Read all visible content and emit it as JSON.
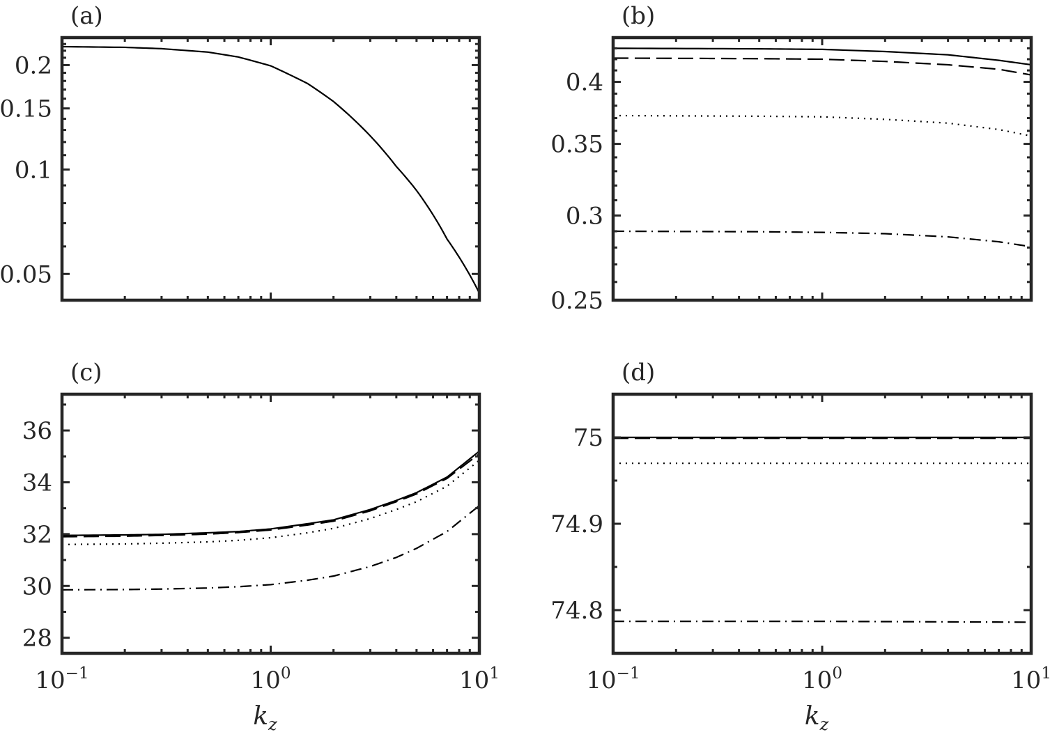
{
  "chart_data": [
    {
      "panel": "(a)",
      "type": "line",
      "xscale": "log",
      "yscale": "log",
      "xlim": [
        0.1,
        10
      ],
      "ylim": [
        0.042,
        0.24
      ],
      "xticks": [
        {
          "value": 0.1,
          "label": "10",
          "exp": "−1"
        },
        {
          "value": 1,
          "label": "10",
          "exp": "0"
        },
        {
          "value": 10,
          "label": "10",
          "exp": "1"
        }
      ],
      "yticks": [
        {
          "value": 0.05,
          "label": "0.05"
        },
        {
          "value": 0.1,
          "label": "0.1"
        },
        {
          "value": 0.15,
          "label": "0.15"
        },
        {
          "value": 0.2,
          "label": "0.2"
        }
      ],
      "show_xticklabels": false,
      "xlabel": "",
      "series": [
        {
          "name": "solid",
          "style": "solid",
          "x": [
            0.1,
            0.2,
            0.3,
            0.5,
            0.7,
            1,
            1.5,
            2,
            3,
            4,
            5,
            7,
            10
          ],
          "y": [
            0.226,
            0.225,
            0.223,
            0.218,
            0.211,
            0.199,
            0.177,
            0.157,
            0.125,
            0.102,
            0.087,
            0.063,
            0.044
          ]
        }
      ]
    },
    {
      "panel": "(b)",
      "type": "line",
      "xscale": "log",
      "yscale": "log",
      "xlim": [
        0.1,
        10
      ],
      "ylim": [
        0.25,
        0.44
      ],
      "xticks": [
        {
          "value": 0.1,
          "label": "10",
          "exp": "−1"
        },
        {
          "value": 1,
          "label": "10",
          "exp": "0"
        },
        {
          "value": 10,
          "label": "10",
          "exp": "1"
        }
      ],
      "yticks": [
        {
          "value": 0.25,
          "label": "0.25"
        },
        {
          "value": 0.3,
          "label": "0.3"
        },
        {
          "value": 0.35,
          "label": "0.35"
        },
        {
          "value": 0.4,
          "label": "0.4"
        }
      ],
      "show_xticklabels": false,
      "xlabel": "",
      "series": [
        {
          "name": "solid",
          "style": "solid",
          "x": [
            0.1,
            0.5,
            1,
            2,
            4,
            7,
            10
          ],
          "y": [
            0.43,
            0.4295,
            0.429,
            0.427,
            0.424,
            0.419,
            0.415
          ]
        },
        {
          "name": "dashed",
          "style": "dashed",
          "x": [
            0.1,
            0.5,
            1,
            2,
            4,
            7,
            10
          ],
          "y": [
            0.421,
            0.4205,
            0.42,
            0.418,
            0.415,
            0.411,
            0.406
          ]
        },
        {
          "name": "dotted",
          "style": "dotted",
          "x": [
            0.1,
            0.5,
            1,
            2,
            4,
            7,
            10
          ],
          "y": [
            0.372,
            0.3715,
            0.371,
            0.369,
            0.366,
            0.361,
            0.356
          ]
        },
        {
          "name": "dash-dot",
          "style": "dashdot",
          "x": [
            0.1,
            0.5,
            1,
            2,
            4,
            7,
            10
          ],
          "y": [
            0.29,
            0.2897,
            0.2893,
            0.2885,
            0.2865,
            0.2835,
            0.2805
          ]
        }
      ]
    },
    {
      "panel": "(c)",
      "type": "line",
      "xscale": "log",
      "yscale": "linear",
      "xlim": [
        0.1,
        10
      ],
      "ylim": [
        27.4,
        37.4
      ],
      "xticks": [
        {
          "value": 0.1,
          "label": "10",
          "exp": "−1"
        },
        {
          "value": 1,
          "label": "10",
          "exp": "0"
        },
        {
          "value": 10,
          "label": "10",
          "exp": "1"
        }
      ],
      "yticks": [
        {
          "value": 28,
          "label": "28"
        },
        {
          "value": 30,
          "label": "30"
        },
        {
          "value": 32,
          "label": "32"
        },
        {
          "value": 34,
          "label": "34"
        },
        {
          "value": 36,
          "label": "36"
        }
      ],
      "show_xticklabels": true,
      "xlabel": "k",
      "xlabel_sub": "z",
      "series": [
        {
          "name": "solid",
          "style": "solid",
          "x": [
            0.1,
            0.2,
            0.3,
            0.5,
            0.7,
            1,
            1.5,
            2,
            3,
            4,
            5,
            7,
            10
          ],
          "y": [
            31.95,
            31.97,
            31.99,
            32.05,
            32.1,
            32.2,
            32.4,
            32.55,
            32.95,
            33.3,
            33.6,
            34.2,
            35.2
          ]
        },
        {
          "name": "dashed",
          "style": "dashed",
          "x": [
            0.1,
            0.2,
            0.3,
            0.5,
            0.7,
            1,
            1.5,
            2,
            3,
            4,
            5,
            7,
            10
          ],
          "y": [
            31.9,
            31.92,
            31.95,
            32.0,
            32.06,
            32.16,
            32.35,
            32.5,
            32.9,
            33.25,
            33.55,
            34.15,
            35.1
          ]
        },
        {
          "name": "dotted",
          "style": "dotted",
          "x": [
            0.1,
            0.2,
            0.3,
            0.5,
            0.7,
            1,
            1.5,
            2,
            3,
            4,
            5,
            7,
            10
          ],
          "y": [
            31.6,
            31.62,
            31.65,
            31.7,
            31.76,
            31.86,
            32.05,
            32.22,
            32.6,
            32.95,
            33.25,
            33.85,
            34.85
          ]
        },
        {
          "name": "dash-dot",
          "style": "dashdot",
          "x": [
            0.1,
            0.2,
            0.3,
            0.5,
            0.7,
            1,
            1.5,
            2,
            3,
            4,
            5,
            7,
            10
          ],
          "y": [
            29.85,
            29.86,
            29.88,
            29.92,
            29.97,
            30.05,
            30.22,
            30.38,
            30.75,
            31.1,
            31.45,
            32.1,
            33.1
          ]
        }
      ]
    },
    {
      "panel": "(d)",
      "type": "line",
      "xscale": "log",
      "yscale": "linear",
      "xlim": [
        0.1,
        10
      ],
      "ylim": [
        74.75,
        75.05
      ],
      "xticks": [
        {
          "value": 0.1,
          "label": "10",
          "exp": "−1"
        },
        {
          "value": 1,
          "label": "10",
          "exp": "0"
        },
        {
          "value": 10,
          "label": "10",
          "exp": "1"
        }
      ],
      "yticks": [
        {
          "value": 74.8,
          "label": "74.8"
        },
        {
          "value": 74.9,
          "label": "74.9"
        },
        {
          "value": 75.0,
          "label": "75"
        }
      ],
      "show_xticklabels": true,
      "xlabel": "k",
      "xlabel_sub": "z",
      "series": [
        {
          "name": "solid",
          "style": "solid",
          "x": [
            0.1,
            1,
            10
          ],
          "y": [
            75.0,
            75.0,
            75.0
          ]
        },
        {
          "name": "dashed",
          "style": "dashed",
          "x": [
            0.1,
            1,
            10
          ],
          "y": [
            74.999,
            74.999,
            74.999
          ]
        },
        {
          "name": "dotted",
          "style": "dotted",
          "x": [
            0.1,
            1,
            10
          ],
          "y": [
            74.97,
            74.97,
            74.97
          ]
        },
        {
          "name": "dash-dot",
          "style": "dashdot",
          "x": [
            0.1,
            1,
            10
          ],
          "y": [
            74.787,
            74.787,
            74.786
          ]
        }
      ]
    }
  ]
}
